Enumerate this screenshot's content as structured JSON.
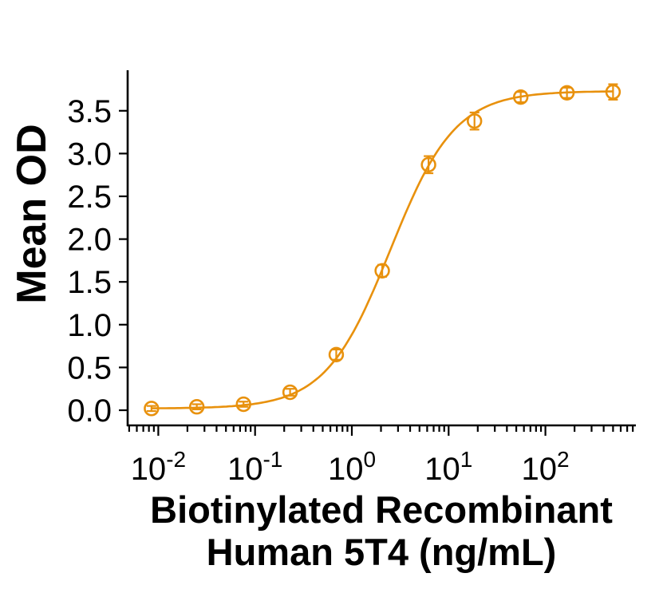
{
  "figure": {
    "background": "#ffffff",
    "text_color": "#000000"
  },
  "chart_data": {
    "type": "scatter",
    "title": "Biotinylated Recombinant Human 5T4 (ng/mL)",
    "title_lines": [
      "Biotinylated Recombinant",
      "Human 5T4 (ng/mL)"
    ],
    "xlabel": "Biotinylated Recombinant Human 5T4 (ng/mL)",
    "ylabel": "Mean OD",
    "x_scale": "log10",
    "x_range": [
      0.005,
      880
    ],
    "ylim": [
      0,
      3.95
    ],
    "grid": false,
    "legend_shown": false,
    "y_ticks": [
      {
        "label": "0.0",
        "value": 0.0
      },
      {
        "label": "0.5",
        "value": 0.5
      },
      {
        "label": "1.0",
        "value": 1.0
      },
      {
        "label": "1.5",
        "value": 1.5
      },
      {
        "label": "2.0",
        "value": 2.0
      },
      {
        "label": "2.5",
        "value": 2.5
      },
      {
        "label": "3.0",
        "value": 3.0
      },
      {
        "label": "3.5",
        "value": 3.5
      }
    ],
    "x_major_ticks": [
      {
        "base": "10",
        "exp": "-2",
        "value": 0.01
      },
      {
        "base": "10",
        "exp": "-1",
        "value": 0.1
      },
      {
        "base": "10",
        "exp": "0",
        "value": 1
      },
      {
        "base": "10",
        "exp": "1",
        "value": 10
      },
      {
        "base": "10",
        "exp": "2",
        "value": 100
      }
    ],
    "series": [
      {
        "name": "Biotinylated Recombinant Human 5T4",
        "color": "#E8910D",
        "marker": "open-circle",
        "points": [
          {
            "x": 0.0085,
            "y": 0.02,
            "err": 0.03
          },
          {
            "x": 0.025,
            "y": 0.04,
            "err": 0.03
          },
          {
            "x": 0.076,
            "y": 0.07,
            "err": 0.03
          },
          {
            "x": 0.23,
            "y": 0.21,
            "err": 0.04
          },
          {
            "x": 0.69,
            "y": 0.65,
            "err": 0.06
          },
          {
            "x": 2.06,
            "y": 1.63,
            "err": 0.07
          },
          {
            "x": 6.2,
            "y": 2.87,
            "err": 0.1
          },
          {
            "x": 18.5,
            "y": 3.38,
            "err": 0.1
          },
          {
            "x": 55.6,
            "y": 3.66,
            "err": 0.06
          },
          {
            "x": 167,
            "y": 3.71,
            "err": 0.06
          },
          {
            "x": 500,
            "y": 3.72,
            "err": 0.09
          }
        ],
        "curve_fit": {
          "model": "4PL",
          "bottom": 0.02,
          "top": 3.73,
          "ec50": 2.5,
          "hill": 1.3
        }
      }
    ]
  }
}
